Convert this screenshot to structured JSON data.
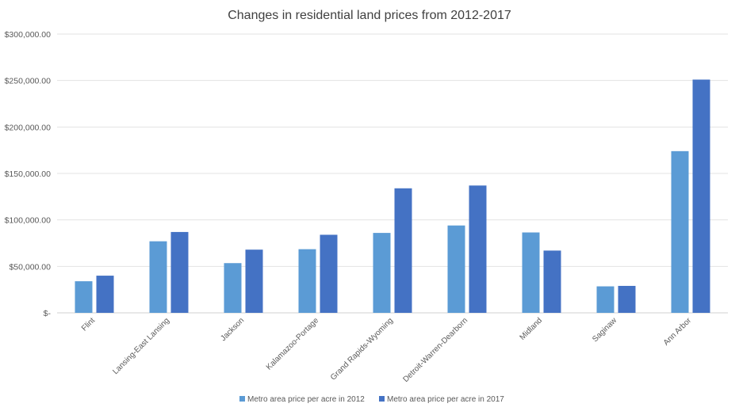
{
  "chart_data": {
    "type": "bar",
    "title": "Changes in residential land prices from 2012-2017",
    "xlabel": "",
    "ylabel": "",
    "categories": [
      "Flint",
      "Lansing-East Lansing",
      "Jackson",
      "Kalamazoo-Portage",
      "Grand Rapids-Wyoming",
      "Detroit-Warren-Dearborn",
      "Midland",
      "Saginaw",
      "Ann Arbor"
    ],
    "series": [
      {
        "name": "Metro area price per acre in 2012",
        "color": "#5B9BD5",
        "values": [
          34000,
          77000,
          53500,
          68500,
          86000,
          94000,
          86500,
          28500,
          174000
        ]
      },
      {
        "name": "Metro area price per acre in 2017",
        "color": "#4472C4",
        "values": [
          40000,
          87000,
          68000,
          84000,
          134000,
          137000,
          67000,
          29000,
          251000
        ]
      }
    ],
    "ylim": [
      0,
      300000
    ],
    "yticks": [
      0,
      50000,
      100000,
      150000,
      200000,
      250000,
      300000
    ],
    "ytick_labels": [
      "$-",
      "$50,000.00",
      "$100,000.00",
      "$150,000.00",
      "$200,000.00",
      "$250,000.00",
      "$300,000.00"
    ],
    "grid": true,
    "legend_position": "bottom"
  }
}
